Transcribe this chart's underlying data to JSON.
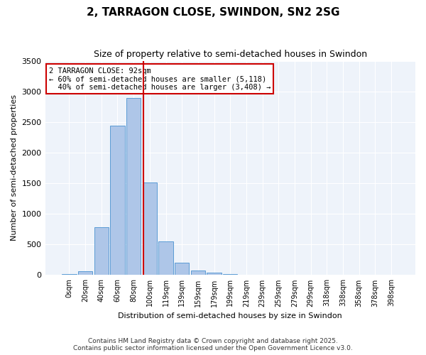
{
  "title": "2, TARRAGON CLOSE, SWINDON, SN2 2SG",
  "subtitle": "Size of property relative to semi-detached houses in Swindon",
  "xlabel": "Distribution of semi-detached houses by size in Swindon",
  "ylabel": "Number of semi-detached properties",
  "bin_labels": [
    "0sqm",
    "20sqm",
    "40sqm",
    "60sqm",
    "80sqm",
    "100sqm",
    "119sqm",
    "139sqm",
    "159sqm",
    "179sqm",
    "199sqm",
    "219sqm",
    "239sqm",
    "259sqm",
    "279sqm",
    "299sqm",
    "318sqm",
    "338sqm",
    "358sqm",
    "378sqm",
    "398sqm"
  ],
  "bar_heights": [
    20,
    60,
    780,
    2440,
    2890,
    1510,
    550,
    200,
    80,
    35,
    15,
    5,
    2,
    1,
    1,
    0,
    0,
    0,
    0,
    0,
    0
  ],
  "bar_color": "#aec6e8",
  "bar_edge_color": "#5b9bd5",
  "vline_x": 4.6,
  "vline_color": "#cc0000",
  "annotation_text": "2 TARRAGON CLOSE: 92sqm\n← 60% of semi-detached houses are smaller (5,118)\n  40% of semi-detached houses are larger (3,408) →",
  "annotation_box_color": "#cc0000",
  "ylim": [
    0,
    3500
  ],
  "yticks": [
    0,
    500,
    1000,
    1500,
    2000,
    2500,
    3000,
    3500
  ],
  "bg_color": "#eef3fa",
  "footer_line1": "Contains HM Land Registry data © Crown copyright and database right 2025.",
  "footer_line2": "Contains public sector information licensed under the Open Government Licence v3.0."
}
